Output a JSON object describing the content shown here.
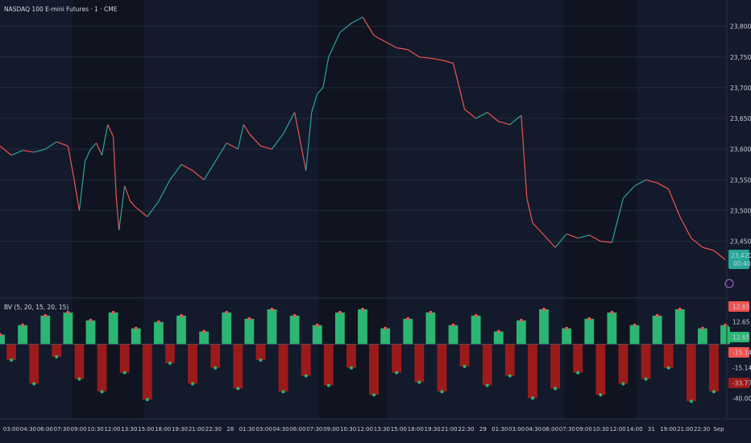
{
  "header": {
    "symbol_title": "NASDAQ 100 E-mini Futures · 1 · CME",
    "indicator_title": "BV (5, 20, 15, 20, 15)"
  },
  "colors": {
    "background": "#131a2b",
    "session_shade": "#0f1420",
    "up": "#26a69a",
    "down": "#ef5350",
    "osc_green": "#2bb673",
    "osc_red": "#9b1b1b",
    "price_badge": "#26a69a"
  },
  "chart_data": [
    {
      "type": "line",
      "title": "NASDAQ 100 E-mini Futures · 1 · CME",
      "ylim": [
        23410,
        23835
      ],
      "y_ticks": [
        "23,850.00",
        "23,800.00",
        "23,750.00",
        "23,700.00",
        "23,650.00",
        "23,600.00",
        "23,550.00",
        "23,500.00",
        "23,450.00"
      ],
      "y_tick_values": [
        23850,
        23800,
        23750,
        23700,
        23650,
        23600,
        23550,
        23500,
        23450
      ],
      "last_price": "23,420.00",
      "countdown": "00:40",
      "x_index": [
        0,
        4,
        8,
        12,
        16,
        20,
        24,
        26,
        28,
        30,
        32,
        34,
        36,
        38,
        40,
        41,
        42,
        44,
        46,
        48,
        52,
        56,
        60,
        64,
        68,
        72,
        76,
        80,
        84,
        86,
        88,
        90,
        92,
        96,
        100,
        104,
        108,
        110,
        112,
        114,
        116,
        118,
        120,
        124,
        128,
        132,
        136,
        140,
        144,
        148,
        152,
        156,
        160,
        164,
        168,
        172,
        176,
        180,
        184,
        186,
        188,
        190,
        192,
        196,
        200,
        204,
        208,
        212,
        216,
        220,
        224,
        228,
        232,
        236,
        240,
        244,
        248,
        252,
        256
      ],
      "price": [
        23605,
        23590,
        23598,
        23595,
        23600,
        23612,
        23605,
        23555,
        23500,
        23580,
        23600,
        23610,
        23590,
        23640,
        23620,
        23525,
        23468,
        23540,
        23515,
        23505,
        23490,
        23515,
        23550,
        23575,
        23565,
        23550,
        23580,
        23610,
        23600,
        23640,
        23625,
        23615,
        23605,
        23600,
        23625,
        23660,
        23565,
        23660,
        23690,
        23700,
        23750,
        23770,
        23790,
        23805,
        23815,
        23785,
        23775,
        23765,
        23762,
        23750,
        23748,
        23745,
        23740,
        23665,
        23650,
        23660,
        23645,
        23640,
        23655,
        23520,
        23480,
        23470,
        23460,
        23440,
        23462,
        23455,
        23460,
        23450,
        23448,
        23520,
        23540,
        23550,
        23545,
        23535,
        23490,
        23455,
        23440,
        23435,
        23420
      ]
    },
    {
      "type": "area",
      "title": "BV (5, 20, 15, 20, 15)",
      "ylim": [
        -40,
        22
      ],
      "levels": [
        {
          "label": "12.65",
          "value": 12.65,
          "color": "#ef5350"
        },
        {
          "label": "12.65",
          "value": 12.65,
          "color": "#131a2b"
        },
        {
          "label": "12.65",
          "value": 12.65,
          "color": "#2bb673"
        },
        {
          "label": "-15.14",
          "value": -15.14,
          "color": "#ef5350"
        },
        {
          "label": "-15.14",
          "value": -15.14,
          "color": "#131a2b"
        },
        {
          "label": "-33.77",
          "value": -33.77,
          "color": "#9b1b1b"
        },
        {
          "label": "-40.00",
          "value": -40.0,
          "color": "#131a2b"
        }
      ],
      "x_index": [
        0,
        4,
        8,
        12,
        16,
        20,
        24,
        28,
        32,
        36,
        40,
        44,
        48,
        52,
        56,
        60,
        64,
        68,
        72,
        76,
        80,
        84,
        88,
        92,
        96,
        100,
        104,
        108,
        112,
        116,
        120,
        124,
        128,
        132,
        136,
        140,
        144,
        148,
        152,
        156,
        160,
        164,
        168,
        172,
        176,
        180,
        184,
        188,
        192,
        196,
        200,
        204,
        208,
        212,
        216,
        220,
        224,
        228,
        232,
        236,
        240,
        244,
        248,
        252,
        256
      ],
      "values": [
        6,
        -10,
        12,
        -25,
        18,
        -8,
        20,
        -22,
        15,
        -30,
        20,
        -18,
        10,
        -35,
        14,
        -12,
        18,
        -25,
        8,
        -15,
        20,
        -28,
        16,
        -10,
        22,
        -30,
        18,
        -20,
        12,
        -26,
        20,
        -15,
        22,
        -32,
        10,
        -18,
        16,
        -24,
        20,
        -30,
        12,
        -14,
        18,
        -26,
        8,
        -20,
        15,
        -34,
        22,
        -28,
        10,
        -18,
        16,
        -32,
        20,
        -25,
        12,
        -22,
        18,
        -15,
        22,
        -36,
        10,
        -30,
        12
      ]
    }
  ],
  "x_axis": {
    "labels": [
      "03:00",
      "04:30",
      "06:00",
      "07:30",
      "09:00",
      "10:30",
      "12:00",
      "13:30",
      "15:00",
      "18:00",
      "19:30",
      "21:00",
      "22:30",
      "28",
      "01:30",
      "03:00",
      "04:30",
      "06:00",
      "07:30",
      "09:00",
      "10:30",
      "12:00",
      "13:30",
      "15:00",
      "18:00",
      "19:30",
      "21:00",
      "22:30",
      "29",
      "01:30",
      "03:00",
      "04:30",
      "06:00",
      "07:30",
      "09:00",
      "10:30",
      "12:00",
      "14:00",
      "31",
      "19:00",
      "21:00",
      "22:30",
      "Sep"
    ]
  }
}
